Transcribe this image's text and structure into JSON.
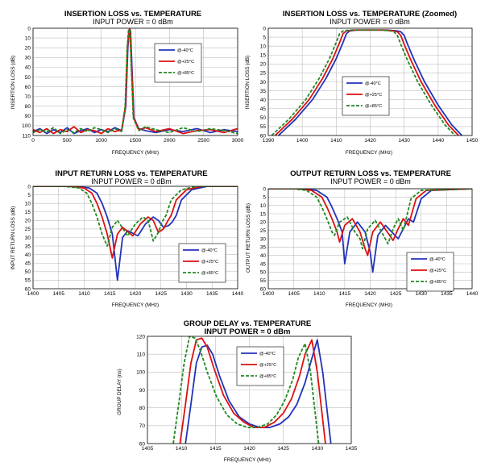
{
  "chart_data": [
    {
      "id": "il-wide",
      "type": "line",
      "title": "INSERTION LOSS vs. TEMPERATURE",
      "subtitle": "INPUT POWER = 0 dBm",
      "xlabel": "FREQUENCY (MHz)",
      "ylabel": "INSERTION LOSS (dB)",
      "xlim": [
        0,
        3000
      ],
      "ylim": [
        0,
        110
      ],
      "y_inverted": true,
      "xticks": [
        0,
        500,
        1000,
        1500,
        2000,
        2500,
        3000
      ],
      "yticks": [
        0,
        10,
        20,
        30,
        40,
        50,
        60,
        70,
        80,
        90,
        100,
        110
      ],
      "legend_position": "top-right",
      "series": [
        {
          "name": "@-40°C",
          "color": "#2233bb",
          "dash": "solid",
          "x": [
            0,
            100,
            200,
            300,
            400,
            500,
            600,
            700,
            800,
            900,
            1000,
            1100,
            1200,
            1300,
            1360,
            1390,
            1410,
            1420,
            1430,
            1450,
            1480,
            1550,
            1650,
            1800,
            2000,
            2200,
            2400,
            2600,
            2800,
            3000
          ],
          "y": [
            106,
            103,
            108,
            104,
            107,
            102,
            108,
            105,
            103,
            107,
            104,
            106,
            102,
            105,
            80,
            20,
            2,
            1,
            3,
            40,
            92,
            103,
            105,
            107,
            104,
            106,
            103,
            107,
            104,
            106
          ]
        },
        {
          "name": "@+25°C",
          "color": "#dd1111",
          "dash": "solid",
          "x": [
            0,
            100,
            200,
            300,
            400,
            500,
            600,
            700,
            800,
            900,
            1000,
            1100,
            1200,
            1300,
            1355,
            1385,
            1405,
            1415,
            1425,
            1445,
            1475,
            1550,
            1650,
            1800,
            2000,
            2200,
            2400,
            2600,
            2800,
            3000
          ],
          "y": [
            104,
            107,
            103,
            108,
            104,
            106,
            101,
            107,
            104,
            105,
            108,
            103,
            106,
            104,
            80,
            20,
            2,
            1,
            3,
            40,
            92,
            104,
            102,
            106,
            103,
            108,
            105,
            104,
            107,
            103
          ]
        },
        {
          "name": "@+85°C",
          "color": "#228822",
          "dash": "dashed",
          "x": [
            0,
            100,
            200,
            300,
            400,
            500,
            600,
            700,
            800,
            900,
            1000,
            1100,
            1200,
            1300,
            1350,
            1380,
            1400,
            1410,
            1420,
            1440,
            1470,
            1550,
            1650,
            1800,
            2000,
            2200,
            2400,
            2600,
            2800,
            3000
          ],
          "y": [
            107,
            104,
            106,
            102,
            108,
            104,
            107,
            103,
            106,
            102,
            104,
            107,
            103,
            106,
            80,
            20,
            2,
            1,
            3,
            40,
            92,
            105,
            101,
            104,
            107,
            102,
            106,
            103,
            105,
            108
          ]
        }
      ]
    },
    {
      "id": "il-zoom",
      "type": "line",
      "title": "INSERTION LOSS vs. TEMPERATURE (Zoomed)",
      "subtitle": "INPUT POWER = 0 dBm",
      "xlabel": "FREQUENCY (MHz)",
      "ylabel": "INSERTION LOSS (dB)",
      "xlim": [
        1390,
        1450
      ],
      "ylim": [
        0,
        60
      ],
      "y_inverted": true,
      "xticks": [
        1390,
        1400,
        1410,
        1420,
        1430,
        1440,
        1450
      ],
      "yticks": [
        0,
        5,
        10,
        15,
        20,
        25,
        30,
        35,
        40,
        45,
        50,
        55,
        60
      ],
      "legend_position": "center",
      "series": [
        {
          "name": "@-40°C",
          "color": "#2233bb",
          "dash": "solid",
          "x": [
            1393,
            1398,
            1403,
            1407,
            1410,
            1412,
            1413,
            1414,
            1416,
            1420,
            1425,
            1428,
            1429,
            1430,
            1431,
            1433,
            1436,
            1440,
            1444,
            1447
          ],
          "y": [
            60,
            51,
            40,
            28,
            17,
            8,
            3,
            1.5,
            1,
            1,
            1,
            1.5,
            2,
            4,
            9,
            18,
            30,
            43,
            54,
            60
          ]
        },
        {
          "name": "@+25°C",
          "color": "#dd1111",
          "dash": "solid",
          "x": [
            1392,
            1397,
            1402,
            1406,
            1409,
            1411,
            1412,
            1413,
            1415,
            1420,
            1424,
            1427,
            1428,
            1429,
            1430,
            1432,
            1435,
            1439,
            1443,
            1446
          ],
          "y": [
            60,
            51,
            40,
            28,
            17,
            8,
            3,
            1.5,
            1,
            1,
            1,
            1.5,
            2,
            4,
            9,
            18,
            30,
            43,
            54,
            60
          ]
        },
        {
          "name": "@+85°C",
          "color": "#228822",
          "dash": "dashed",
          "x": [
            1391,
            1396,
            1401,
            1405,
            1408,
            1410,
            1411,
            1412,
            1414,
            1420,
            1423,
            1426,
            1427,
            1428,
            1429,
            1431,
            1434,
            1438,
            1442,
            1445
          ],
          "y": [
            60,
            51,
            40,
            28,
            17,
            8,
            3,
            1.5,
            1,
            1,
            1,
            1.5,
            2,
            4,
            9,
            18,
            30,
            43,
            54,
            60
          ]
        }
      ]
    },
    {
      "id": "irl",
      "type": "line",
      "title": "INPUT RETURN LOSS vs. TEMPERATURE",
      "subtitle": "INPUT POWER = 0 dBm",
      "xlabel": "FREQUENCY (MHz)",
      "ylabel": "INPUT RETURN LOSS (dB)",
      "xlim": [
        1400,
        1440
      ],
      "ylim": [
        0,
        60
      ],
      "y_inverted": true,
      "xticks": [
        1400,
        1405,
        1410,
        1415,
        1420,
        1425,
        1430,
        1435,
        1440
      ],
      "yticks": [
        0,
        5,
        10,
        15,
        20,
        25,
        30,
        35,
        40,
        45,
        50,
        55,
        60
      ],
      "legend_position": "bottom-right",
      "series": [
        {
          "name": "@-40°C",
          "color": "#2233bb",
          "dash": "solid",
          "x": [
            1400,
            1408,
            1411,
            1412.5,
            1413.5,
            1414.5,
            1415.5,
            1416.5,
            1417.5,
            1418.5,
            1420.5,
            1422,
            1423.5,
            1424.5,
            1425.5,
            1426.5,
            1427.2,
            1428,
            1429,
            1431,
            1434,
            1440
          ],
          "y": [
            0,
            0,
            1,
            4,
            10,
            18,
            28,
            55,
            30,
            26,
            29,
            22,
            18,
            20,
            24,
            23,
            21,
            17,
            8,
            2,
            0,
            0
          ]
        },
        {
          "name": "@+25°C",
          "color": "#dd1111",
          "dash": "solid",
          "x": [
            1400,
            1407,
            1410,
            1411.5,
            1412.5,
            1413.5,
            1414.5,
            1415.5,
            1416.5,
            1417.5,
            1419.5,
            1421,
            1422.5,
            1423.5,
            1424.5,
            1425.5,
            1426.2,
            1427,
            1428,
            1430,
            1433,
            1440
          ],
          "y": [
            0,
            0,
            1,
            4,
            10,
            18,
            28,
            42,
            28,
            24,
            29,
            22,
            18,
            20,
            27,
            25,
            21,
            17,
            8,
            2,
            0,
            0
          ]
        },
        {
          "name": "@+85°C",
          "color": "#228822",
          "dash": "dashed",
          "x": [
            1400,
            1406,
            1409,
            1410.5,
            1411.5,
            1412.5,
            1413.5,
            1414.5,
            1415.5,
            1416.5,
            1418.5,
            1420,
            1421.5,
            1422.5,
            1423.5,
            1424.5,
            1425.2,
            1426,
            1427,
            1429,
            1432,
            1440
          ],
          "y": [
            0,
            0,
            1,
            4,
            10,
            18,
            28,
            35,
            24,
            20,
            29,
            22,
            18,
            20,
            32,
            27,
            21,
            17,
            8,
            2,
            0,
            0
          ]
        }
      ]
    },
    {
      "id": "orl",
      "type": "line",
      "title": "OUTPUT RETURN LOSS vs. TEMPERATURE",
      "subtitle": "INPUT POWER = 0 dBm",
      "xlabel": "FREQUENCY (MHz)",
      "ylabel": "OUTPUT RETURN LOSS (dB)",
      "xlim": [
        1400,
        1440
      ],
      "ylim": [
        0,
        60
      ],
      "y_inverted": true,
      "xticks": [
        1400,
        1405,
        1410,
        1415,
        1420,
        1425,
        1430,
        1435,
        1440
      ],
      "yticks": [
        0,
        5,
        10,
        15,
        20,
        25,
        30,
        35,
        40,
        45,
        50,
        55,
        60
      ],
      "legend_position": "bottom-right",
      "series": [
        {
          "name": "@-40°C",
          "color": "#2233bb",
          "dash": "solid",
          "x": [
            1400,
            1407,
            1409.5,
            1411.5,
            1412.5,
            1413.5,
            1414.5,
            1415,
            1416,
            1417.5,
            1419,
            1420,
            1420.5,
            1421.5,
            1423,
            1425.5,
            1426.5,
            1427.5,
            1428.5,
            1430,
            1432,
            1440
          ],
          "y": [
            0,
            0,
            1,
            5,
            11,
            18,
            26,
            45,
            26,
            20,
            26,
            38,
            50,
            28,
            22,
            30,
            24,
            18,
            20,
            6,
            1,
            0
          ]
        },
        {
          "name": "@+25°C",
          "color": "#dd1111",
          "dash": "solid",
          "x": [
            1400,
            1406,
            1408.5,
            1410.5,
            1411.5,
            1412.5,
            1413.5,
            1414,
            1415,
            1416.5,
            1418,
            1419,
            1419.5,
            1420.5,
            1422,
            1424.5,
            1425.5,
            1426.5,
            1427.5,
            1429,
            1431,
            1440
          ],
          "y": [
            0,
            0,
            1,
            5,
            11,
            18,
            26,
            32,
            22,
            18,
            26,
            36,
            40,
            26,
            20,
            31,
            24,
            18,
            22,
            6,
            1,
            0
          ]
        },
        {
          "name": "@+85°C",
          "color": "#228822",
          "dash": "dashed",
          "x": [
            1400,
            1405,
            1407.5,
            1409.5,
            1410.5,
            1411.5,
            1412.5,
            1413,
            1414,
            1415.5,
            1417,
            1418,
            1418.5,
            1419.5,
            1421,
            1423.5,
            1424.5,
            1425.5,
            1426.5,
            1428,
            1430,
            1440
          ],
          "y": [
            0,
            0,
            1,
            5,
            11,
            18,
            26,
            28,
            20,
            17,
            26,
            30,
            36,
            24,
            19,
            33,
            24,
            18,
            25,
            6,
            1,
            0
          ]
        }
      ]
    },
    {
      "id": "gd",
      "type": "line",
      "title": "GROUP DELAY vs. TEMPERATURE",
      "subtitle": "INPUT POWER = 0 dBm",
      "xlabel": "FREQUENCY (MHz)",
      "ylabel": "GROUP DELAY (ns)",
      "xlim": [
        1405,
        1435
      ],
      "ylim": [
        60,
        120
      ],
      "y_inverted": false,
      "xticks": [
        1405,
        1410,
        1415,
        1420,
        1425,
        1430,
        1435
      ],
      "yticks": [
        60.0,
        70.0,
        80.0,
        90.0,
        100.0,
        110.0,
        120.0
      ],
      "legend_position": "top-right",
      "series": [
        {
          "name": "@-40°C",
          "color": "#2233bb",
          "dash": "solid",
          "x": [
            1410.6,
            1411.4,
            1412.2,
            1413,
            1413.8,
            1414.6,
            1415.6,
            1417,
            1418.5,
            1420,
            1421.5,
            1423,
            1424.5,
            1425.8,
            1427,
            1428.2,
            1429,
            1430,
            1430.8,
            1431.4,
            1432
          ],
          "y": [
            60,
            82,
            105,
            114,
            115,
            110,
            98,
            84,
            75,
            71,
            69,
            69,
            71,
            75,
            82,
            94,
            105,
            118,
            100,
            80,
            60
          ]
        },
        {
          "name": "@+25°C",
          "color": "#dd1111",
          "dash": "solid",
          "x": [
            1409.8,
            1410.6,
            1411.4,
            1412.2,
            1413,
            1413.8,
            1414.8,
            1416.2,
            1417.7,
            1419.2,
            1420.7,
            1422.2,
            1423.7,
            1425,
            1426.2,
            1427.4,
            1428.2,
            1429.2,
            1430,
            1430.6,
            1431.2
          ],
          "y": [
            60,
            82,
            105,
            118,
            119,
            114,
            102,
            87,
            77,
            72,
            69,
            69,
            72,
            77,
            85,
            98,
            110,
            118,
            100,
            80,
            60
          ]
        },
        {
          "name": "@+85°C",
          "color": "#228822",
          "dash": "dashed",
          "x": [
            1408.8,
            1409.6,
            1410.4,
            1411.2,
            1412,
            1412.8,
            1413.8,
            1415.2,
            1416.7,
            1418.2,
            1419.7,
            1421.2,
            1422.7,
            1424,
            1425.2,
            1426.4,
            1427.2,
            1428.2,
            1429,
            1429.6,
            1430.2
          ],
          "y": [
            60,
            82,
            105,
            120,
            119,
            112,
            100,
            86,
            76,
            71,
            69,
            69,
            71,
            76,
            84,
            96,
            108,
            116,
            100,
            80,
            60
          ]
        }
      ]
    }
  ]
}
